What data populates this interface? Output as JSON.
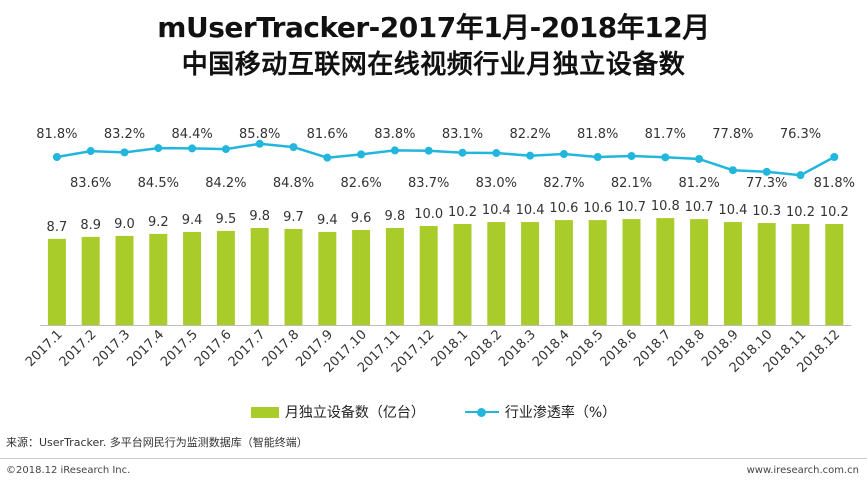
{
  "header": {
    "title_line1": "mUserTracker-2017年1月-2018年12月",
    "title_line2": "中国移动互联网在线视频行业月独立设备数"
  },
  "legend": {
    "bar_label": "月独立设备数（亿台）",
    "line_label": "行业渗透率（%）"
  },
  "source_note": "来源：UserTracker. 多平台网民行为监测数据库（智能终端）",
  "footer": {
    "copyright": "©2018.12 iResearch Inc.",
    "website": "www.iresearch.com.cn"
  },
  "colors": {
    "bar": "#a9cc2b",
    "line": "#22b6dc"
  },
  "chart_data": {
    "type": "bar",
    "categories": [
      "2017.1",
      "2017.2",
      "2017.3",
      "2017.4",
      "2017.5",
      "2017.6",
      "2017.7",
      "2017.8",
      "2017.9",
      "2017.10",
      "2017.11",
      "2017.12",
      "2018.1",
      "2018.2",
      "2018.3",
      "2018.4",
      "2018.5",
      "2018.6",
      "2018.7",
      "2018.8",
      "2018.9",
      "2018.10",
      "2018.11",
      "2018.12"
    ],
    "series": [
      {
        "name": "月独立设备数（亿台）",
        "type": "bar",
        "values": [
          8.7,
          8.9,
          9.0,
          9.2,
          9.4,
          9.5,
          9.8,
          9.7,
          9.4,
          9.6,
          9.8,
          10.0,
          10.2,
          10.4,
          10.4,
          10.6,
          10.6,
          10.7,
          10.8,
          10.7,
          10.4,
          10.3,
          10.2,
          10.2
        ],
        "value_labels": [
          "8.7",
          "8.9",
          "9.0",
          "9.2",
          "9.4",
          "9.5",
          "9.8",
          "9.7",
          "9.4",
          "9.6",
          "9.8",
          "10.0",
          "10.2",
          "10.4",
          "10.4",
          "10.6",
          "10.6",
          "10.7",
          "10.8",
          "10.7",
          "10.4",
          "10.3",
          "10.2",
          "10.2"
        ]
      },
      {
        "name": "行业渗透率（%）",
        "type": "line",
        "values": [
          81.8,
          83.6,
          83.2,
          84.5,
          84.4,
          84.2,
          85.8,
          84.8,
          81.6,
          82.6,
          83.8,
          83.7,
          83.1,
          83.0,
          82.2,
          82.7,
          81.8,
          82.1,
          81.7,
          81.2,
          77.8,
          77.3,
          76.3,
          81.8
        ],
        "value_labels": [
          "81.8%",
          "83.6%",
          "83.2%",
          "84.5%",
          "84.4%",
          "84.2%",
          "85.8%",
          "84.8%",
          "81.6%",
          "82.6%",
          "83.8%",
          "83.7%",
          "83.1%",
          "83.0%",
          "82.2%",
          "82.7%",
          "81.8%",
          "82.1%",
          "81.7%",
          "81.2%",
          "77.8%",
          "77.3%",
          "76.3%",
          "81.8%"
        ]
      }
    ],
    "legend_position": "bottom",
    "grid": false
  }
}
